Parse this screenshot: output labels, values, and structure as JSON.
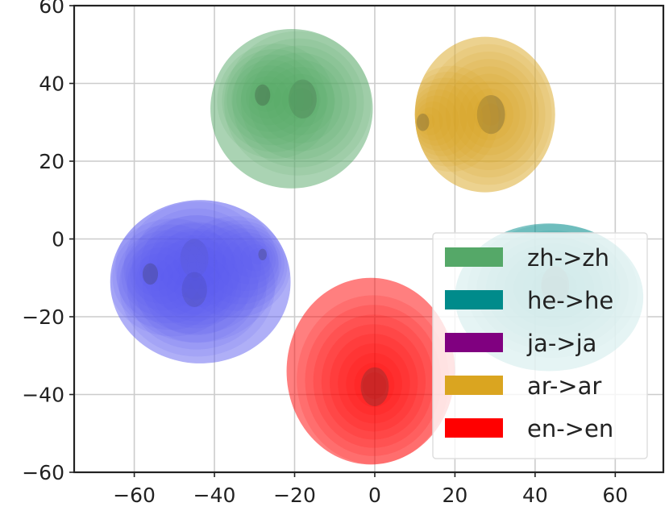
{
  "chart_data": {
    "type": "kde-contour",
    "title": "",
    "xlabel": "",
    "ylabel": "",
    "xlim": [
      -75,
      72
    ],
    "ylim": [
      -60,
      60
    ],
    "x_ticks": [
      -60,
      -40,
      -20,
      0,
      20,
      40,
      60
    ],
    "y_ticks": [
      -60,
      -40,
      -20,
      0,
      20,
      40,
      60
    ],
    "x_tick_labels": [
      "−60",
      "−40",
      "−20",
      "0",
      "20",
      "40",
      "60"
    ],
    "y_tick_labels": [
      "−60",
      "−40",
      "−20",
      "0",
      "20",
      "40",
      "60"
    ],
    "grid": true,
    "legend_position": "lower-right",
    "series": [
      {
        "name": "zh->zh",
        "color": "#55a868",
        "peaks": [
          {
            "x": -18,
            "y": 36,
            "w": 1.0
          },
          {
            "x": -28,
            "y": 37,
            "w": 0.55
          }
        ],
        "extent_x": [
          -41,
          -0.5
        ],
        "extent_y": [
          13,
          54
        ]
      },
      {
        "name": "he->he",
        "color": "#008b8b",
        "peaks": [
          {
            "x": 45,
            "y": -12,
            "w": 1.0
          }
        ],
        "extent_x": [
          20,
          67
        ],
        "extent_y": [
          -34,
          4
        ]
      },
      {
        "name": "ja->ja",
        "color": "#800080",
        "peaks": [],
        "extent_x": [],
        "extent_y": []
      },
      {
        "name": "ar->ar",
        "color": "#daa520",
        "peaks": [
          {
            "x": 29,
            "y": 32,
            "w": 1.0
          },
          {
            "x": 12,
            "y": 30,
            "w": 0.45
          }
        ],
        "extent_x": [
          10,
          45
        ],
        "extent_y": [
          12,
          52
        ]
      },
      {
        "name": "en->en",
        "color": "#ff0000",
        "peaks": [
          {
            "x": 0,
            "y": -38,
            "w": 1.0
          }
        ],
        "extent_x": [
          -22,
          20
        ],
        "extent_y": [
          -58,
          -10
        ]
      },
      {
        "name": "",
        "color": "#6060f0",
        "peaks": [
          {
            "x": -45,
            "y": -5,
            "w": 1.0
          },
          {
            "x": -45,
            "y": -13,
            "w": 0.9
          },
          {
            "x": -56,
            "y": -9,
            "w": 0.55
          },
          {
            "x": -28,
            "y": -4,
            "w": 0.3
          }
        ],
        "extent_x": [
          -66,
          -21
        ],
        "extent_y": [
          -32,
          10
        ]
      }
    ]
  }
}
